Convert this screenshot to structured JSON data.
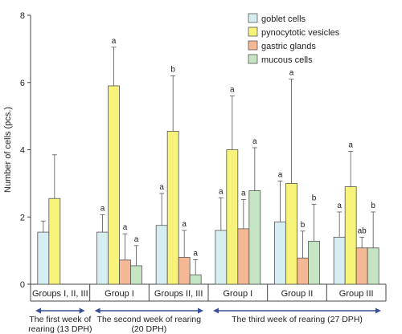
{
  "chart_data": {
    "type": "bar",
    "ylabel": "Number of cells (pcs.)",
    "ylim": [
      0,
      8
    ],
    "yticks": [
      0,
      2,
      4,
      6,
      8
    ],
    "grid": false,
    "legend_position": "top-right",
    "categories": [
      "Groups I, II, III",
      "Group I",
      "Groups II, III",
      "Group I",
      "Group II",
      "Group III"
    ],
    "series": [
      {
        "name": "goblet cells",
        "color": "#d6eef1",
        "values": [
          1.55,
          1.55,
          1.75,
          1.6,
          1.85,
          1.4
        ],
        "errors": [
          0.33,
          0.52,
          0.95,
          0.97,
          1.22,
          0.75
        ],
        "labels": [
          "",
          "a",
          "a",
          "a",
          "a",
          "a"
        ]
      },
      {
        "name": "pynocytotic vesicles",
        "color": "#f7f37a",
        "values": [
          2.55,
          5.9,
          4.55,
          4.0,
          3.0,
          2.9
        ],
        "errors": [
          1.3,
          1.15,
          1.65,
          1.6,
          3.1,
          1.05
        ],
        "labels": [
          "",
          "a",
          "b",
          "a",
          "a",
          "a"
        ]
      },
      {
        "name": "gastric glands",
        "color": "#f4b895",
        "values": [
          null,
          0.72,
          0.8,
          1.65,
          0.78,
          1.08
        ],
        "errors": [
          null,
          0.78,
          0.8,
          0.87,
          0.8,
          0.32
        ],
        "labels": [
          "",
          "a",
          "a",
          "a",
          "b",
          "ab"
        ]
      },
      {
        "name": "mucous cells",
        "color": "#c5e4c3",
        "values": [
          null,
          0.55,
          0.28,
          2.78,
          1.28,
          1.08
        ],
        "errors": [
          null,
          0.6,
          0.45,
          1.28,
          1.1,
          1.07
        ],
        "labels": [
          "",
          "a",
          "a",
          "a",
          "b",
          "b"
        ]
      }
    ],
    "periods": [
      {
        "label": "The first week of rearing (13 DPH)",
        "lines": [
          "The first week of",
          "rearing (13 DPH)"
        ],
        "from": 0,
        "to": 0
      },
      {
        "label": "The second week of rearing (20 DPH)",
        "lines": [
          "The second week of rearing",
          "(20 DPH)"
        ],
        "from": 1,
        "to": 2
      },
      {
        "label": "The third week of rearing (27 DPH)",
        "lines": [
          "The third week of rearing (27 DPH)"
        ],
        "from": 3,
        "to": 5
      }
    ],
    "period_arrow_color": "#3b4e9c"
  }
}
